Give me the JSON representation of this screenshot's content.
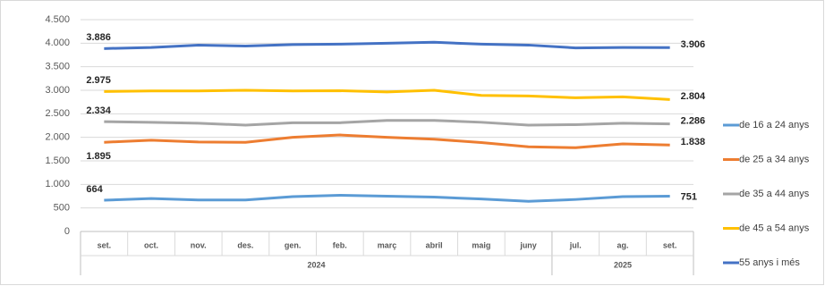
{
  "chart_data": {
    "type": "line",
    "categories": [
      "set.",
      "oct.",
      "nov.",
      "des.",
      "gen.",
      "feb.",
      "març",
      "abril",
      "maig",
      "juny",
      "jul.",
      "ag.",
      "set."
    ],
    "groups": [
      {
        "label": "2024",
        "span": 10
      },
      {
        "label": "2025",
        "span": 3
      }
    ],
    "series": [
      {
        "name": "de 16 a 24 anys",
        "color": "#5b9bd5",
        "values": [
          664,
          700,
          670,
          670,
          740,
          770,
          750,
          730,
          690,
          640,
          680,
          740,
          751
        ],
        "value_labels": [
          "664",
          null,
          null,
          null,
          null,
          null,
          null,
          null,
          null,
          null,
          null,
          null,
          "751"
        ]
      },
      {
        "name": "de 25 a 34 anys",
        "color": "#ed7d31",
        "values": [
          1895,
          1940,
          1900,
          1895,
          2000,
          2050,
          2000,
          1960,
          1890,
          1800,
          1780,
          1860,
          1838
        ],
        "value_labels": [
          "1.895",
          null,
          null,
          null,
          null,
          null,
          null,
          null,
          null,
          null,
          null,
          null,
          "1.838"
        ]
      },
      {
        "name": "de 35 a 44 anys",
        "color": "#a5a5a5",
        "values": [
          2334,
          2320,
          2300,
          2260,
          2310,
          2310,
          2360,
          2360,
          2320,
          2260,
          2270,
          2300,
          2286
        ],
        "value_labels": [
          "2.334",
          null,
          null,
          null,
          null,
          null,
          null,
          null,
          null,
          null,
          null,
          null,
          "2.286"
        ]
      },
      {
        "name": "de 45 a 54 anys",
        "color": "#ffc000",
        "values": [
          2975,
          2985,
          2985,
          3000,
          2985,
          2990,
          2965,
          3000,
          2890,
          2880,
          2840,
          2860,
          2804
        ],
        "value_labels": [
          "2.975",
          null,
          null,
          null,
          null,
          null,
          null,
          null,
          null,
          null,
          null,
          null,
          "2.804"
        ]
      },
      {
        "name": "55 anys i més",
        "color": "#4472c4",
        "values": [
          3886,
          3910,
          3960,
          3940,
          3970,
          3980,
          4000,
          4020,
          3980,
          3960,
          3900,
          3910,
          3906
        ],
        "value_labels": [
          "3.886",
          null,
          null,
          null,
          null,
          null,
          null,
          null,
          null,
          null,
          null,
          null,
          "3.906"
        ]
      }
    ],
    "ylim": [
      0,
      4500
    ],
    "yticks": [
      0,
      500,
      {
        "value": 1000,
        "label": "1.000"
      },
      {
        "value": 1500,
        "label": "1.500"
      },
      {
        "value": 2000,
        "label": "2.000"
      },
      {
        "value": 2500,
        "label": "2.500"
      },
      {
        "value": 3000,
        "label": "3.000"
      },
      {
        "value": 3500,
        "label": "3.500"
      },
      {
        "value": 4000,
        "label": "4.000"
      },
      {
        "value": 4500,
        "label": "4.500"
      }
    ],
    "grid": true,
    "legend": "right"
  }
}
